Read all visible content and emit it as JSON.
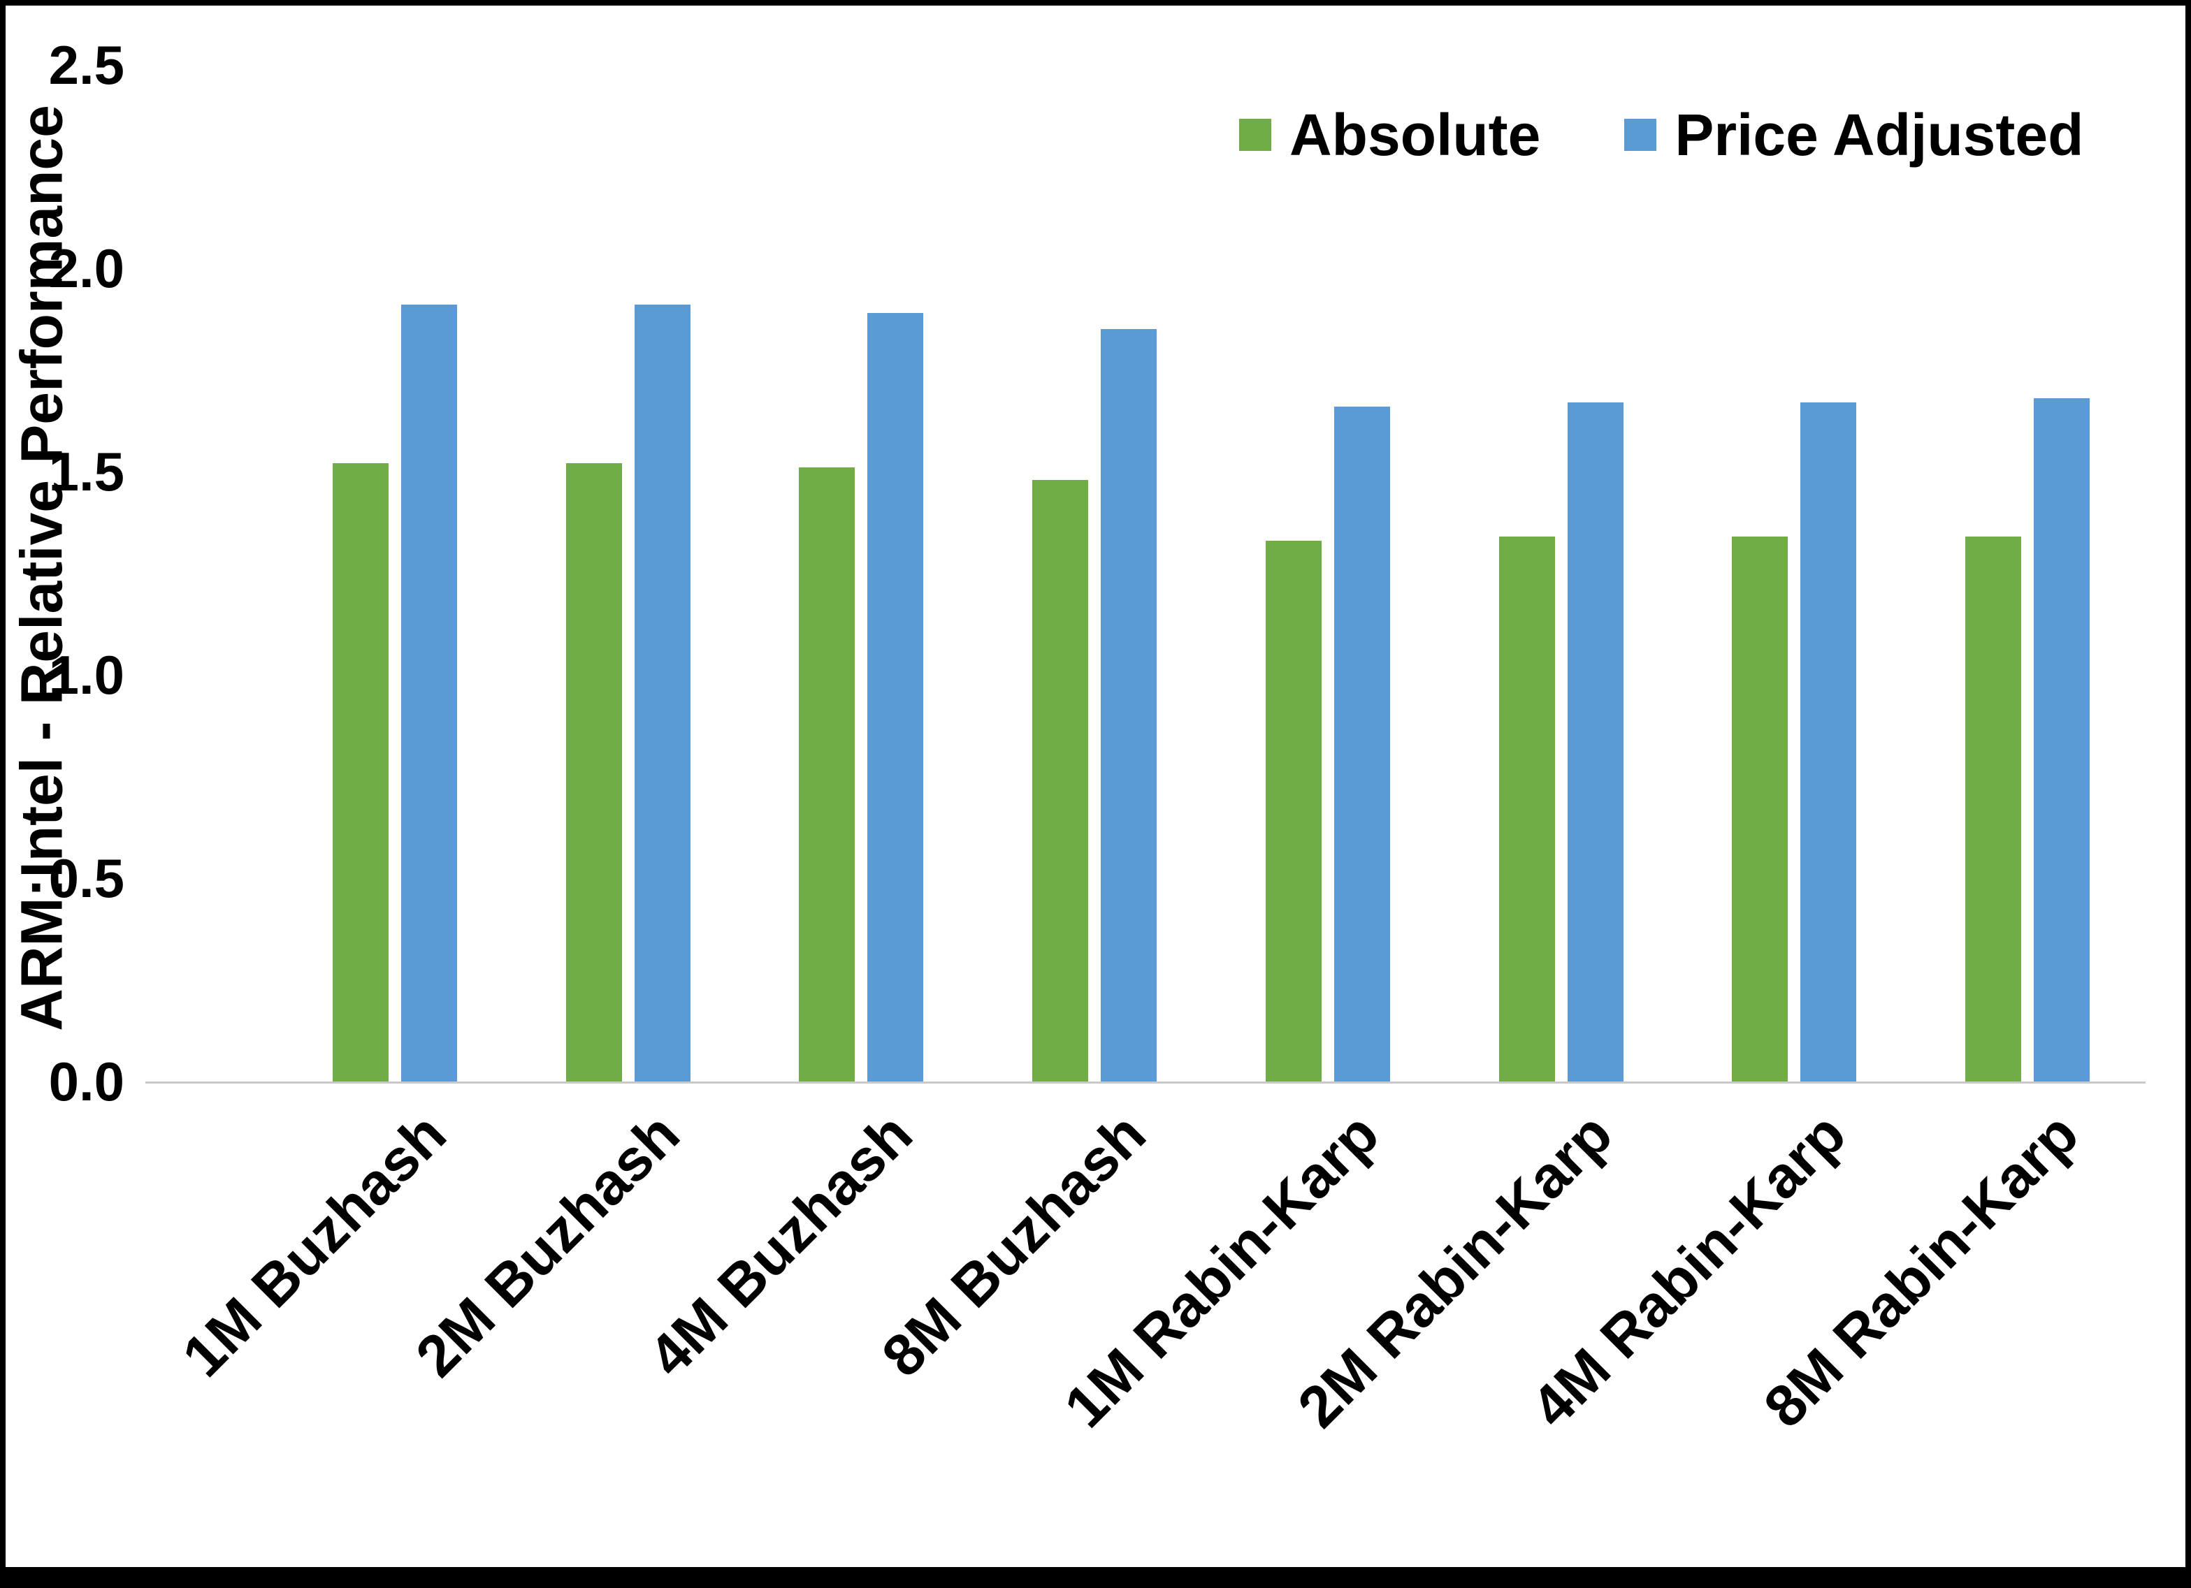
{
  "chart_data": {
    "type": "bar",
    "title": "",
    "xlabel": "",
    "ylabel": "ARM:Intel - Relative Performance",
    "ylim": [
      0,
      2.5
    ],
    "yticks": [
      0.0,
      0.5,
      1.0,
      1.5,
      2.0,
      2.5
    ],
    "grid": false,
    "legend_position": "top-right",
    "categories": [
      "1M Buzhash",
      "2M Buzhash",
      "4M Buzhash",
      "8M Buzhash",
      "1M Rabin-Karp",
      "2M Rabin-Karp",
      "4M Rabin-Karp",
      "8M Rabin-Karp"
    ],
    "series": [
      {
        "name": "Absolute",
        "color": "#70AD47",
        "values": [
          1.52,
          1.52,
          1.51,
          1.48,
          1.33,
          1.34,
          1.34,
          1.34
        ]
      },
      {
        "name": "Price Adjusted",
        "color": "#5B9BD5",
        "values": [
          1.91,
          1.91,
          1.89,
          1.85,
          1.66,
          1.67,
          1.67,
          1.68
        ]
      }
    ],
    "axis_line_color": "#C9C9C9"
  }
}
